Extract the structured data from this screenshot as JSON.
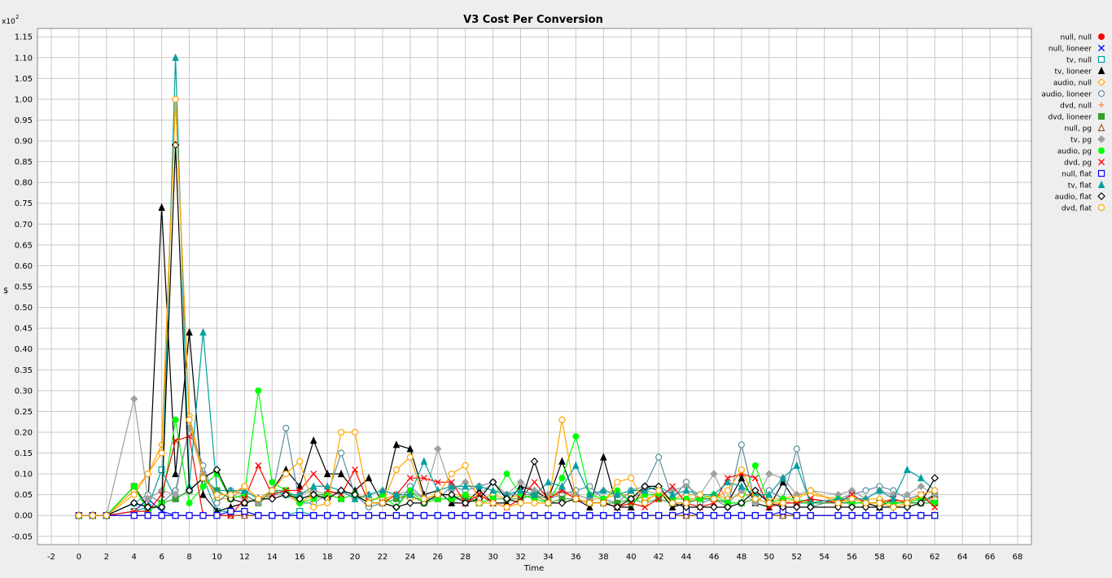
{
  "chart_data": {
    "type": "line",
    "title": "V3 Cost Per Conversion",
    "xlabel": "Time",
    "ylabel": "$",
    "multiplier_label": "x10",
    "multiplier_exp": "2",
    "xlim": [
      -3,
      69
    ],
    "ylim": [
      -0.07,
      1.17
    ],
    "xticks": [
      -2,
      0,
      2,
      4,
      6,
      8,
      10,
      12,
      14,
      16,
      18,
      20,
      22,
      24,
      26,
      28,
      30,
      32,
      34,
      36,
      38,
      40,
      42,
      44,
      46,
      48,
      50,
      52,
      54,
      56,
      58,
      60,
      62,
      64,
      66,
      68
    ],
    "yticks": [
      -0.05,
      0,
      0.05,
      0.1,
      0.15,
      0.2,
      0.25,
      0.3,
      0.35,
      0.4,
      0.45,
      0.5,
      0.55,
      0.6,
      0.65,
      0.7,
      0.75,
      0.8,
      0.85,
      0.9,
      0.95,
      1.0,
      1.05,
      1.1,
      1.15
    ],
    "ytick_labels": [
      "-0.05",
      "0.00",
      "0.05",
      "0.10",
      "0.15",
      "0.20",
      "0.25",
      "0.30",
      "0.35",
      "0.40",
      "0.45",
      "0.50",
      "0.55",
      "0.60",
      "0.65",
      "0.70",
      "0.75",
      "0.80",
      "0.85",
      "0.90",
      "0.95",
      "1.00",
      "1.05",
      "1.10",
      "1.15"
    ],
    "grid": true,
    "legend_position": "right",
    "x": [
      0,
      1,
      2,
      4,
      5,
      6,
      7,
      8,
      9,
      10,
      11,
      12,
      13,
      14,
      15,
      16,
      17,
      18,
      19,
      20,
      21,
      22,
      23,
      24,
      25,
      26,
      27,
      28,
      29,
      30,
      31,
      32,
      33,
      34,
      35,
      36,
      37,
      38,
      39,
      40,
      41,
      42,
      43,
      44,
      45,
      46,
      47,
      48,
      49,
      50,
      51,
      52,
      53,
      55,
      56,
      57,
      58,
      59,
      60,
      61,
      62
    ],
    "series": [
      {
        "name": "null, null",
        "color": "#ff0000",
        "marker": "circle-filled",
        "values": [
          0,
          0,
          0,
          0,
          0,
          0,
          0,
          0,
          0,
          0,
          0,
          0,
          0,
          0,
          0,
          0,
          0,
          0,
          0,
          0,
          0,
          0,
          0,
          0,
          0,
          0,
          0,
          0,
          0,
          0,
          0,
          0,
          0,
          0,
          0,
          0,
          0,
          0,
          0,
          0,
          0,
          0,
          0,
          0,
          0,
          0,
          0,
          0,
          0,
          0,
          0,
          0,
          0,
          0,
          0,
          0,
          0,
          0,
          0,
          0,
          0
        ]
      },
      {
        "name": "null, lioneer",
        "color": "#0000ff",
        "marker": "x",
        "values": [
          0,
          0,
          0,
          0.01,
          0.04,
          0.01,
          0,
          0,
          0,
          0,
          0,
          0,
          0,
          0,
          0,
          0,
          0,
          0,
          0,
          0,
          0,
          0,
          0,
          0,
          0,
          0,
          0,
          0,
          0,
          0,
          0,
          0,
          0,
          0,
          0,
          0,
          0,
          0,
          0,
          0,
          0,
          0,
          0,
          0,
          0,
          0,
          0,
          0,
          0,
          0,
          0,
          0,
          0,
          0,
          0,
          0,
          0,
          0,
          0,
          0,
          0
        ]
      },
      {
        "name": "tv, null",
        "color": "#00a0a0",
        "marker": "square",
        "values": [
          0,
          0,
          0,
          0.01,
          0.02,
          0.11,
          0.04,
          0.06,
          0.09,
          0.01,
          0.01,
          0.01,
          0,
          0,
          0,
          0.01,
          0,
          0,
          0,
          0,
          0,
          0,
          0,
          0,
          0,
          0,
          0,
          0,
          0,
          0,
          0,
          0,
          0,
          0,
          0,
          0,
          0,
          0,
          0,
          0,
          0,
          0,
          0,
          0,
          0,
          0,
          0,
          0,
          0,
          0,
          0,
          0,
          0,
          0,
          0,
          0,
          0,
          0,
          0,
          0,
          0
        ]
      },
      {
        "name": "tv, lioneer",
        "color": "#000000",
        "marker": "triangle-filled",
        "values": [
          0,
          0,
          0,
          0.07,
          0.02,
          0.74,
          0.1,
          0.44,
          0.05,
          0.01,
          0.02,
          0.03,
          0.04,
          0.06,
          0.11,
          0.07,
          0.18,
          0.1,
          0.1,
          0.06,
          0.09,
          0.03,
          0.17,
          0.16,
          0.05,
          0.06,
          0.03,
          0.03,
          0.06,
          0.03,
          0.03,
          0.07,
          0.06,
          0.04,
          0.13,
          0.04,
          0.02,
          0.14,
          0.02,
          0.02,
          0.07,
          0.06,
          0.02,
          0.03,
          0.04,
          0.04,
          0.03,
          0.09,
          0.03,
          0.02,
          0.08,
          0.03,
          0.04,
          0.03,
          0.03,
          0.03,
          0.02,
          0.04,
          0.03,
          0.03,
          0.05
        ]
      },
      {
        "name": "audio, null",
        "color": "#ffa500",
        "marker": "diamond",
        "values": [
          0,
          0,
          0,
          0.06,
          0.1,
          0.17,
          1.0,
          0.24,
          0.1,
          0.04,
          0.04,
          0.07,
          0.04,
          0.05,
          0.05,
          0.03,
          0.05,
          0.05,
          0.06,
          0.05,
          0.04,
          0.04,
          0.05,
          0.04,
          0.04,
          0.05,
          0.05,
          0.05,
          0.04,
          0.05,
          0.04,
          0.05,
          0.04,
          0.05,
          0.05,
          0.05,
          0.04,
          0.04,
          0.05,
          0.05,
          0.04,
          0.05,
          0.04,
          0.05,
          0.05,
          0.05,
          0.04,
          0.05,
          0.05,
          0.04,
          0.04,
          0.05,
          0.05,
          0.04,
          0.04,
          0.04,
          0.04,
          0.03,
          0.04,
          0.04,
          0.04
        ]
      },
      {
        "name": "audio, lioneer",
        "color": "#5f8f9f",
        "marker": "circle",
        "values": [
          0,
          0,
          0,
          0.03,
          0.05,
          0.03,
          0.06,
          0.21,
          0.12,
          0.03,
          0.06,
          0.05,
          0.03,
          0.05,
          0.21,
          0.03,
          0.03,
          0.05,
          0.15,
          0.05,
          0.02,
          0.03,
          0.02,
          0.07,
          0.04,
          0.04,
          0.07,
          0.06,
          0.07,
          0.08,
          0.05,
          0.05,
          0.05,
          0.04,
          0.05,
          0.06,
          0.07,
          0.04,
          0.03,
          0.06,
          0.07,
          0.14,
          0.04,
          0.08,
          0.03,
          0.04,
          0.02,
          0.17,
          0.03,
          0.06,
          0.04,
          0.16,
          0.02,
          0.04,
          0.05,
          0.06,
          0.07,
          0.06,
          0.04,
          0.05,
          0.03
        ]
      },
      {
        "name": "dvd, null",
        "color": "#ff8040",
        "marker": "plus",
        "values": [
          0,
          0,
          0,
          0,
          0,
          0,
          0,
          0,
          0,
          0,
          0,
          0,
          0,
          0,
          0,
          0,
          0,
          0,
          0,
          0,
          0,
          0,
          0,
          0,
          0,
          0,
          0,
          0,
          0,
          0,
          0,
          0,
          0,
          0,
          0,
          0,
          0,
          0,
          0,
          0,
          0,
          0,
          0,
          0,
          0,
          0,
          0,
          0,
          0,
          0,
          0,
          0,
          0,
          0,
          0,
          0,
          0,
          0,
          0,
          0,
          0
        ]
      },
      {
        "name": "dvd, lioneer",
        "color": "#33a02c",
        "marker": "square-filled",
        "values": [
          0,
          0,
          0,
          0.07,
          0.01,
          0.03,
          0.04,
          0.06,
          0.09,
          0.06,
          0.04,
          0.05,
          0.03,
          0.06,
          0.06,
          0.04,
          0.05,
          0.05,
          0.04,
          0.05,
          0.03,
          0.03,
          0.04,
          0.05,
          0.03,
          0.04,
          0.04,
          0.04,
          0.03,
          0.04,
          0.04,
          0.04,
          0.05,
          0.03,
          0.04,
          0.04,
          0.03,
          0.03,
          0.03,
          0.04,
          0.03,
          0.04,
          0.03,
          0.03,
          0.04,
          0.04,
          0.03,
          0.03,
          0.04,
          0.03,
          0.03,
          0.03,
          0.03,
          0.03,
          0.03,
          0.03,
          0.03,
          0.03,
          0.03,
          0.03,
          0.03
        ]
      },
      {
        "name": "null, pg",
        "color": "#a0522d",
        "marker": "triangle",
        "values": [
          0,
          0,
          0,
          0,
          0,
          0,
          0,
          0,
          0,
          0,
          0,
          0,
          0,
          0,
          0,
          0,
          0,
          0,
          0,
          0,
          0,
          0,
          0,
          0,
          0,
          0,
          0,
          0,
          0,
          0,
          0,
          0,
          0,
          0,
          0,
          0,
          0,
          0,
          0,
          0,
          0,
          0,
          0,
          0,
          0,
          0,
          0,
          0,
          0,
          0,
          0,
          0,
          0,
          0,
          0,
          0,
          0,
          0,
          0,
          0,
          0
        ]
      },
      {
        "name": "tv, pg",
        "color": "#a0a0a0",
        "marker": "diamond-filled",
        "values": [
          0,
          0,
          0,
          0.28,
          0.04,
          0.06,
          0.05,
          0.21,
          0.1,
          0.05,
          0.05,
          0.04,
          0.03,
          0.05,
          0.05,
          0.05,
          0.06,
          0.05,
          0.06,
          0.04,
          0.05,
          0.06,
          0.05,
          0.06,
          0.04,
          0.16,
          0.06,
          0.08,
          0.05,
          0.08,
          0.05,
          0.08,
          0.06,
          0.05,
          0.06,
          0.05,
          0.04,
          0.06,
          0.05,
          0.04,
          0.06,
          0.05,
          0.06,
          0.07,
          0.05,
          0.1,
          0.03,
          0.06,
          0.03,
          0.1,
          0.09,
          0.05,
          0.06,
          0.05,
          0.06,
          0.04,
          0.06,
          0.05,
          0.05,
          0.07,
          0.05
        ]
      },
      {
        "name": "audio, pg",
        "color": "#00ff00",
        "marker": "circle-filled",
        "values": [
          0,
          0,
          0,
          0.07,
          0.01,
          0.03,
          0.23,
          0.03,
          0.07,
          0.1,
          0.04,
          0.05,
          0.3,
          0.08,
          0.06,
          0.03,
          0.04,
          0.05,
          0.04,
          0.05,
          0.03,
          0.05,
          0.02,
          0.06,
          0.03,
          0.04,
          0.04,
          0.05,
          0.03,
          0.04,
          0.1,
          0.05,
          0.04,
          0.03,
          0.09,
          0.19,
          0.05,
          0.04,
          0.06,
          0.03,
          0.05,
          0.05,
          0.04,
          0.04,
          0.04,
          0.05,
          0.03,
          0.03,
          0.12,
          0.03,
          0.04,
          0.04,
          0.03,
          0.04,
          0.03,
          0.03,
          0.03,
          0.03,
          0.03,
          0.04,
          0.03
        ]
      },
      {
        "name": "dvd, pg",
        "color": "#ff0000",
        "marker": "x",
        "values": [
          0,
          0,
          0,
          0.01,
          0.01,
          0.05,
          0.18,
          0.19,
          0,
          0,
          0,
          0.04,
          0.12,
          0.05,
          0.06,
          0.06,
          0.1,
          0.06,
          0.05,
          0.11,
          0.03,
          0.03,
          0.05,
          0.09,
          0.09,
          0.08,
          0.08,
          0.03,
          0.05,
          0.03,
          0.02,
          0.04,
          0.08,
          0.04,
          0.06,
          0.04,
          0.03,
          0.03,
          0.02,
          0.03,
          0.02,
          0.04,
          0.07,
          0.03,
          0.02,
          0.03,
          0.09,
          0.1,
          0.09,
          0.02,
          0.03,
          0.03,
          0.04,
          0.03,
          0.05,
          0.03,
          0.03,
          0.04,
          0.03,
          0.05,
          0.02
        ]
      },
      {
        "name": "null, flat",
        "color": "#0000ff",
        "marker": "square",
        "values": [
          0,
          0,
          0,
          0,
          0,
          0,
          0,
          0,
          0,
          0,
          0.01,
          0.01,
          0,
          0,
          0,
          0,
          0,
          0,
          0,
          0,
          0,
          0,
          0,
          0,
          0,
          0,
          0,
          0,
          0,
          0,
          0,
          0,
          0,
          0,
          0,
          0,
          0,
          0,
          0,
          0,
          0,
          0,
          0,
          0.01,
          0,
          0,
          0,
          0,
          0,
          0,
          0.01,
          0,
          0,
          0,
          0,
          0,
          0,
          0,
          0,
          0,
          0
        ]
      },
      {
        "name": "tv, flat",
        "color": "#00a0a0",
        "marker": "triangle-filled",
        "values": [
          0,
          0,
          0,
          0.03,
          0.02,
          0.02,
          1.1,
          0.07,
          0.44,
          0.06,
          0.06,
          0.06,
          0.04,
          0.06,
          0.05,
          0.05,
          0.07,
          0.07,
          0.06,
          0.04,
          0.05,
          0.06,
          0.05,
          0.05,
          0.13,
          0.06,
          0.07,
          0.07,
          0.07,
          0.06,
          0.05,
          0.06,
          0.05,
          0.08,
          0.07,
          0.12,
          0.05,
          0.06,
          0.05,
          0.06,
          0.06,
          0.07,
          0.05,
          0.06,
          0.05,
          0.05,
          0.08,
          0.07,
          0.05,
          0.05,
          0.09,
          0.12,
          0.03,
          0.04,
          0.04,
          0.04,
          0.06,
          0.04,
          0.11,
          0.09,
          0.06
        ]
      },
      {
        "name": "audio, flat",
        "color": "#000000",
        "marker": "diamond",
        "values": [
          0,
          0,
          0,
          0.03,
          0.02,
          0.02,
          0.89,
          0.06,
          0.09,
          0.11,
          0.04,
          0.03,
          0.04,
          0.04,
          0.05,
          0.04,
          0.05,
          0.04,
          0.06,
          0.05,
          0.03,
          0.03,
          0.02,
          0.03,
          0.03,
          0.05,
          0.05,
          0.03,
          0.04,
          0.08,
          0.04,
          0.03,
          0.13,
          0.03,
          0.03,
          0.04,
          0.03,
          0.03,
          0.02,
          0.04,
          0.07,
          0.07,
          0.03,
          0.02,
          0.02,
          0.02,
          0.02,
          0.03,
          0.06,
          0.03,
          0.02,
          0.02,
          0.02,
          0.02,
          0.02,
          0.02,
          0.02,
          0.02,
          0.02,
          0.03,
          0.09
        ]
      },
      {
        "name": "dvd, flat",
        "color": "#ffa500",
        "marker": "circle",
        "values": [
          0,
          0,
          0,
          0.05,
          0.1,
          0.15,
          1.0,
          0.23,
          0.09,
          0.05,
          0.05,
          0.07,
          0.04,
          0.06,
          0.1,
          0.13,
          0.02,
          0.03,
          0.2,
          0.2,
          0.03,
          0.03,
          0.11,
          0.14,
          0.04,
          0.05,
          0.1,
          0.12,
          0.03,
          0.03,
          0.02,
          0.03,
          0.03,
          0.03,
          0.23,
          0.04,
          0.03,
          0.03,
          0.08,
          0.09,
          0.03,
          0.06,
          0.03,
          0.03,
          0.05,
          0.04,
          0.06,
          0.11,
          0.04,
          0.03,
          0.03,
          0.04,
          0.06,
          0.03,
          0.04,
          0.03,
          0.03,
          0.02,
          0.03,
          0.05,
          0.06
        ]
      }
    ]
  }
}
